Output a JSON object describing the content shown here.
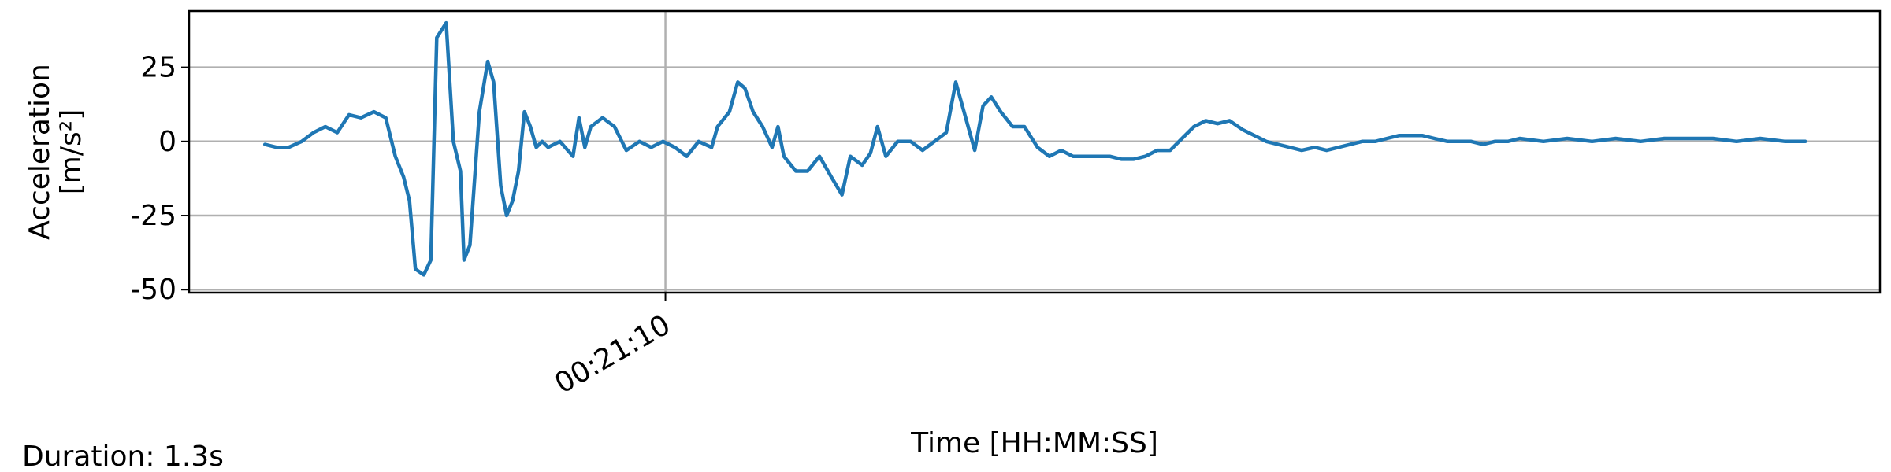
{
  "chart_data": {
    "type": "line",
    "ylabel": [
      "Acceleration",
      "[m/s²]"
    ],
    "xlabel": "Time [HH:MM:SS]",
    "annotation": "Duration: 1.3s",
    "grid": true,
    "xlim": [
      1269.598,
      1271.025
    ],
    "ylim": [
      -51,
      44
    ],
    "xticks": [
      {
        "value": 1270,
        "label": "00:21:10"
      }
    ],
    "yticks": [
      -50,
      -25,
      0,
      25
    ],
    "x": [
      1269.662,
      1269.672,
      1269.682,
      1269.693,
      1269.703,
      1269.713,
      1269.723,
      1269.733,
      1269.743,
      1269.754,
      1269.764,
      1269.772,
      1269.779,
      1269.784,
      1269.789,
      1269.796,
      1269.802,
      1269.807,
      1269.815,
      1269.821,
      1269.827,
      1269.83,
      1269.835,
      1269.843,
      1269.85,
      1269.855,
      1269.861,
      1269.866,
      1269.871,
      1269.876,
      1269.881,
      1269.886,
      1269.891,
      1269.896,
      1269.901,
      1269.911,
      1269.922,
      1269.927,
      1269.932,
      1269.937,
      1269.947,
      1269.957,
      1269.967,
      1269.978,
      1269.988,
      1269.998,
      1270.008,
      1270.018,
      1270.028,
      1270.039,
      1270.044,
      1270.054,
      1270.061,
      1270.067,
      1270.074,
      1270.082,
      1270.09,
      1270.095,
      1270.1,
      1270.11,
      1270.12,
      1270.13,
      1270.14,
      1270.149,
      1270.156,
      1270.166,
      1270.173,
      1270.179,
      1270.186,
      1270.196,
      1270.207,
      1270.217,
      1270.227,
      1270.237,
      1270.245,
      1270.252,
      1270.261,
      1270.268,
      1270.275,
      1270.283,
      1270.293,
      1270.303,
      1270.314,
      1270.324,
      1270.334,
      1270.344,
      1270.354,
      1270.364,
      1270.375,
      1270.385,
      1270.395,
      1270.405,
      1270.415,
      1270.426,
      1270.436,
      1270.446,
      1270.456,
      1270.466,
      1270.476,
      1270.487,
      1270.497,
      1270.507,
      1270.517,
      1270.527,
      1270.537,
      1270.548,
      1270.558,
      1270.568,
      1270.578,
      1270.588,
      1270.599,
      1270.609,
      1270.619,
      1270.629,
      1270.639,
      1270.649,
      1270.66,
      1270.67,
      1270.68,
      1270.69,
      1270.7,
      1270.711,
      1270.721,
      1270.741,
      1270.761,
      1270.782,
      1270.802,
      1270.823,
      1270.843,
      1270.863,
      1270.884,
      1270.904,
      1270.924,
      1270.945,
      1270.962
    ],
    "series": [
      {
        "color": "#1f77b4",
        "values": [
          -1,
          -2,
          -2,
          0,
          3,
          5,
          3,
          9,
          8,
          10,
          8,
          -5,
          -12,
          -20,
          -43,
          -45,
          -40,
          35,
          40,
          0,
          -10,
          -40,
          -35,
          10,
          27,
          20,
          -15,
          -25,
          -20,
          -10,
          10,
          5,
          -2,
          0,
          -2,
          0,
          -5,
          8,
          -2,
          5,
          8,
          5,
          -3,
          0,
          -2,
          0,
          -2,
          -5,
          0,
          -2,
          5,
          10,
          20,
          18,
          10,
          5,
          -2,
          5,
          -5,
          -10,
          -10,
          -5,
          -12,
          -18,
          -5,
          -8,
          -4,
          5,
          -5,
          0,
          0,
          -3,
          0,
          3,
          20,
          10,
          -3,
          12,
          15,
          10,
          5,
          5,
          -2,
          -5,
          -3,
          -5,
          -5,
          -5,
          -5,
          -6,
          -6,
          -5,
          -3,
          -3,
          1,
          5,
          7,
          6,
          7,
          4,
          2,
          0,
          -1,
          -2,
          -3,
          -2,
          -3,
          -2,
          -1,
          0,
          0,
          1,
          2,
          2,
          2,
          1,
          0,
          0,
          0,
          -1,
          0,
          0,
          1,
          0,
          1,
          0,
          1,
          0,
          1,
          1,
          1,
          0,
          1,
          0,
          0
        ]
      }
    ]
  }
}
